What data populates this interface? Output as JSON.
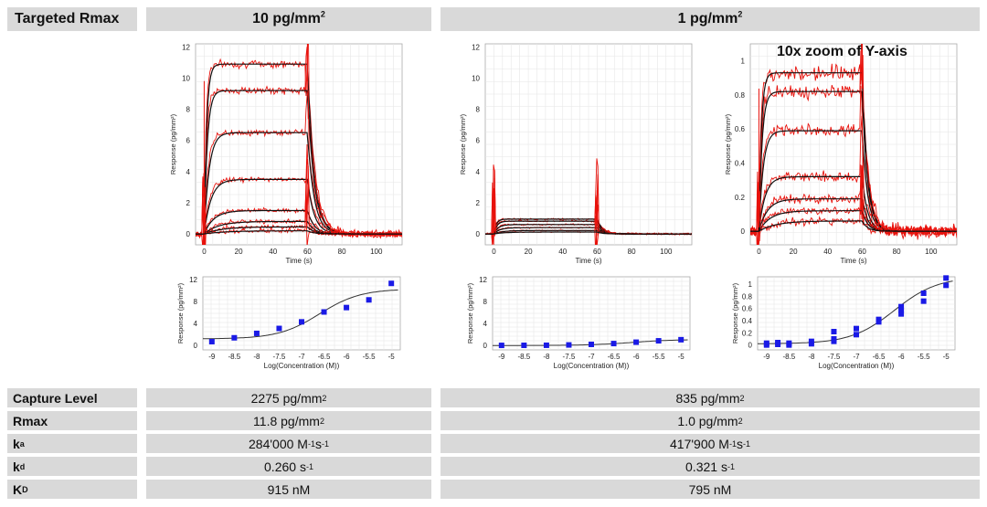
{
  "header": {
    "row_label": "Targeted Rmax",
    "col1_value": "10 pg/mm",
    "col1_exp": "2",
    "col2_value": "1 pg/mm",
    "col2_exp": "2"
  },
  "zoom_label": "10x zoom of Y-axis",
  "table": {
    "rows": [
      {
        "label": "Capture Level",
        "label_sub": "",
        "c1": "2275 pg/mm",
        "c1_sup": "2",
        "c2": "835 pg/mm",
        "c2_sup": "2"
      },
      {
        "label": "Rmax",
        "label_sub": "",
        "c1": "11.8 pg/mm",
        "c1_sup": "2",
        "c2": "1.0 pg/mm",
        "c2_sup": "2"
      },
      {
        "label": "k",
        "label_sub": "a",
        "c1": "284'000 M",
        "c1_sup": "-1",
        "c1_tail": "s",
        "c1_tail_sup": "-1",
        "c2": "417'900 M",
        "c2_sup": "-1",
        "c2_tail": "s",
        "c2_tail_sup": "-1"
      },
      {
        "label": "k",
        "label_sub": "d",
        "c1": "0.260 s",
        "c1_sup": "-1",
        "c2": "0.321 s",
        "c2_sup": "-1"
      },
      {
        "label": "K",
        "label_sub": "D",
        "c1": "915 nM",
        "c1_sup": "",
        "c2": "795 nM",
        "c2_sup": ""
      }
    ]
  },
  "chart_data": [
    {
      "type": "line",
      "panel": "sensorgram-10pg",
      "xlabel": "Time (s)",
      "ylabel": "Response (pg/mm²)",
      "xlim": [
        -5,
        115
      ],
      "ylim": [
        -0.7,
        12.2
      ],
      "xticks": [
        0,
        20,
        40,
        60,
        80,
        100
      ],
      "yticks": [
        0,
        2,
        4,
        6,
        8,
        10,
        12
      ],
      "ytick_labels": [
        "0",
        "2",
        "4",
        "6",
        "8",
        "10",
        "12"
      ],
      "assoc_end": 60,
      "plateaus": [
        10.9,
        9.2,
        6.5,
        3.5,
        1.5,
        0.8,
        0.45,
        0.2
      ],
      "kon": [
        0.7,
        0.55,
        0.35,
        0.25,
        0.18,
        0.12,
        0.1,
        0.08
      ],
      "koff": 0.26,
      "noise": 0.2,
      "grid": true
    },
    {
      "type": "line",
      "panel": "sensorgram-1pg",
      "xlabel": "Time (s)",
      "ylabel": "Response (pg/mm²)",
      "xlim": [
        -5,
        115
      ],
      "ylim": [
        -0.7,
        12.2
      ],
      "xticks": [
        0,
        20,
        40,
        60,
        80,
        100
      ],
      "yticks": [
        0,
        2,
        4,
        6,
        8,
        10,
        12
      ],
      "ytick_labels": [
        "0",
        "2",
        "4",
        "6",
        "8",
        "10",
        "12"
      ],
      "assoc_end": 60,
      "plateaus": [
        0.95,
        0.82,
        0.6,
        0.4,
        0.22,
        0.12
      ],
      "kon": [
        0.7,
        0.55,
        0.4,
        0.3,
        0.2,
        0.15
      ],
      "koff": 0.32,
      "noise": 0.05,
      "grid": true
    },
    {
      "type": "line",
      "panel": "sensorgram-1pg-zoom",
      "xlabel": "Time (s)",
      "ylabel": "Response (pg/mm²)",
      "xlim": [
        -5,
        115
      ],
      "ylim": [
        -0.08,
        1.1
      ],
      "xticks": [
        0,
        20,
        40,
        60,
        80,
        100
      ],
      "yticks": [
        0,
        0.2,
        0.4,
        0.6,
        0.8,
        1
      ],
      "ytick_labels": [
        "0",
        "0.2",
        "0.4",
        "0.6",
        "0.8",
        "1"
      ],
      "assoc_end": 60,
      "plateaus": [
        0.93,
        0.82,
        0.59,
        0.32,
        0.19,
        0.12,
        0.06
      ],
      "kon": [
        0.7,
        0.55,
        0.4,
        0.28,
        0.2,
        0.15,
        0.1
      ],
      "koff": 0.32,
      "noise": 0.035,
      "grid": true
    },
    {
      "type": "scatter",
      "panel": "affinity-10pg",
      "xlabel": "Log(Concentration (M))",
      "ylabel": "Response (pg/mm²)",
      "xlim": [
        -9.2,
        -4.8
      ],
      "ylim": [
        -0.8,
        12.5
      ],
      "xticks": [
        -9,
        -8.5,
        -8,
        -7.5,
        -7,
        -6.5,
        -6,
        -5.5,
        -5
      ],
      "xtick_labels": [
        "-9",
        "-8.5",
        "-8",
        "-7.5",
        "-7",
        "-6.5",
        "-6",
        "-5.5",
        "-5"
      ],
      "yticks": [
        0,
        4,
        8,
        12
      ],
      "ytick_labels": [
        "0",
        "4",
        "8",
        "12"
      ],
      "x": [
        -9,
        -8.5,
        -8,
        -7.5,
        -7,
        -6.5,
        -6,
        -5.5,
        -5
      ],
      "y": [
        0.7,
        1.4,
        2.2,
        3.1,
        4.3,
        6.1,
        6.9,
        8.3,
        11.3
      ],
      "fit_bottom": 1.2,
      "fit_top": 10.3,
      "fit_logec50": -6.6,
      "fit_hill": 0.95,
      "grid": true
    },
    {
      "type": "scatter",
      "panel": "affinity-1pg",
      "xlabel": "Log(Concentration (M))",
      "ylabel": "Response (pg/mm²)",
      "xlim": [
        -9.2,
        -4.8
      ],
      "ylim": [
        -0.8,
        12.5
      ],
      "xticks": [
        -9,
        -8.5,
        -8,
        -7.5,
        -7,
        -6.5,
        -6,
        -5.5,
        -5
      ],
      "xtick_labels": [
        "-9",
        "-8.5",
        "-8",
        "-7.5",
        "-7",
        "-6.5",
        "-6",
        "-5.5",
        "-5"
      ],
      "yticks": [
        0,
        4,
        8,
        12
      ],
      "ytick_labels": [
        "0",
        "4",
        "8",
        "12"
      ],
      "x": [
        -9,
        -8.5,
        -8,
        -7.5,
        -7,
        -6.5,
        -6,
        -5.5,
        -5
      ],
      "y": [
        0.02,
        0.03,
        0.04,
        0.1,
        0.2,
        0.35,
        0.6,
        0.85,
        1.05
      ],
      "fit_bottom": 0.0,
      "fit_top": 1.1,
      "fit_logec50": -6.1,
      "fit_hill": 0.9,
      "grid": true
    },
    {
      "type": "scatter",
      "panel": "affinity-1pg-zoom",
      "xlabel": "Log(Concentration (M))",
      "ylabel": "Response (pg/mm²)",
      "xlim": [
        -9.2,
        -4.8
      ],
      "ylim": [
        -0.08,
        1.12
      ],
      "xticks": [
        -9,
        -8.5,
        -8,
        -7.5,
        -7,
        -6.5,
        -6,
        -5.5,
        -5
      ],
      "xtick_labels": [
        "-9",
        "-8.5",
        "-8",
        "-7.5",
        "-7",
        "-6.5",
        "-6",
        "-5.5",
        "-5"
      ],
      "yticks": [
        0,
        0.2,
        0.4,
        0.6,
        0.8,
        1
      ],
      "ytick_labels": [
        "0",
        "0.2",
        "0.4",
        "0.6",
        "0.8",
        "1"
      ],
      "x": [
        -9,
        -9,
        -8.75,
        -8.75,
        -8.5,
        -8.5,
        -8,
        -8,
        -7.5,
        -7.5,
        -7.5,
        -7,
        -7,
        -6.5,
        -6.5,
        -6,
        -6,
        -6,
        -5.5,
        -5.5,
        -5,
        -5
      ],
      "y": [
        0.0,
        0.03,
        0.01,
        0.04,
        0.0,
        0.03,
        0.02,
        0.06,
        0.06,
        0.1,
        0.22,
        0.17,
        0.27,
        0.38,
        0.42,
        0.51,
        0.57,
        0.63,
        0.72,
        0.85,
        0.98,
        1.1
      ],
      "fit_bottom": 0.02,
      "fit_top": 1.12,
      "fit_logec50": -6.15,
      "fit_hill": 0.9,
      "grid": true
    }
  ]
}
